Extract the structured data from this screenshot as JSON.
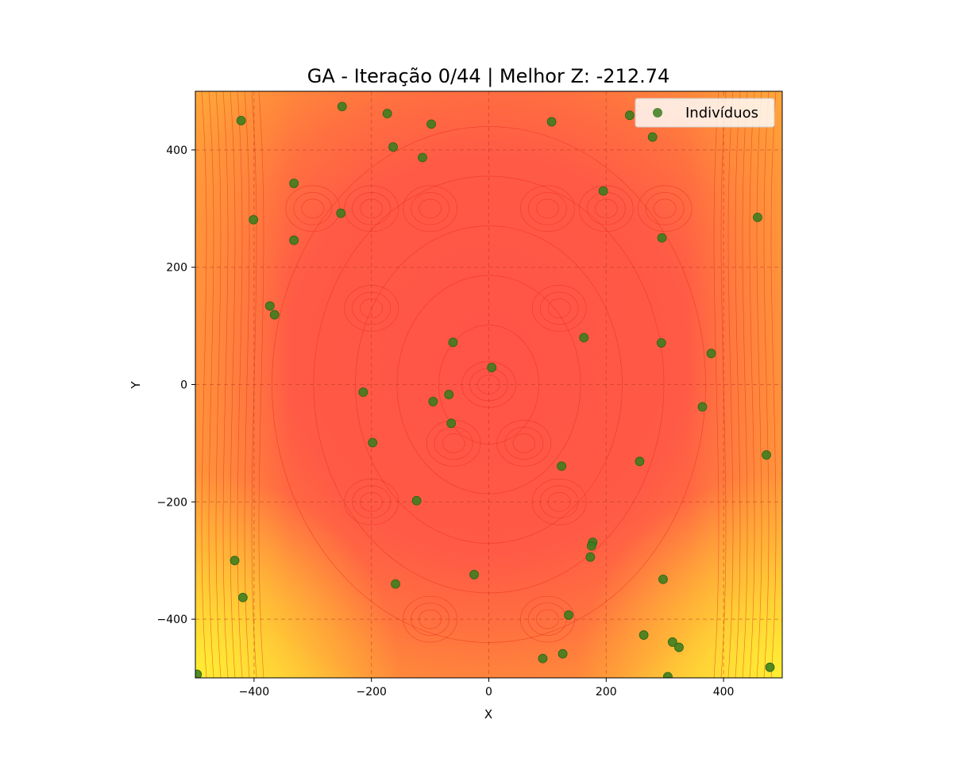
{
  "chart_data": {
    "type": "scatter",
    "title": "GA - Iteração 0/44 | Melhor Z: -212.74",
    "xlabel": "X",
    "ylabel": "Y",
    "xlim": [
      -500,
      500
    ],
    "ylim": [
      -500,
      500
    ],
    "x_ticks": [
      -400,
      -200,
      0,
      200,
      400
    ],
    "y_ticks": [
      -400,
      -200,
      0,
      200,
      400
    ],
    "x_tick_labels": [
      "−400",
      "−200",
      "0",
      "200",
      "400"
    ],
    "y_tick_labels": [
      "−400",
      "−200",
      "0",
      "200",
      "400"
    ],
    "grid": true,
    "legend_position": "top-right",
    "background": "filled contour map (red center to yellow corners)",
    "colors": {
      "points": "#3a7d1e",
      "contour_low": "#ff5448",
      "contour_mid": "#ff8a3a",
      "contour_high": "#ffee33",
      "contour_line": "#e8281a"
    },
    "series": [
      {
        "name": "Indivíduos",
        "points": [
          [
            -422,
            450
          ],
          [
            -250,
            474
          ],
          [
            -173,
            462
          ],
          [
            -98,
            444
          ],
          [
            107,
            448
          ],
          [
            240,
            459
          ],
          [
            -163,
            405
          ],
          [
            -113,
            387
          ],
          [
            279,
            422
          ],
          [
            -332,
            343
          ],
          [
            195,
            330
          ],
          [
            -252,
            292
          ],
          [
            -401,
            281
          ],
          [
            458,
            285
          ],
          [
            -332,
            246
          ],
          [
            295,
            250
          ],
          [
            -373,
            134
          ],
          [
            -365,
            119
          ],
          [
            -61,
            72
          ],
          [
            162,
            80
          ],
          [
            294,
            71
          ],
          [
            379,
            53
          ],
          [
            5,
            29
          ],
          [
            -214,
            -13
          ],
          [
            -68,
            -17
          ],
          [
            -95,
            -29
          ],
          [
            364,
            -38
          ],
          [
            -64,
            -66
          ],
          [
            -198,
            -99
          ],
          [
            473,
            -120
          ],
          [
            257,
            -131
          ],
          [
            124,
            -139
          ],
          [
            -123,
            -198
          ],
          [
            177,
            -269
          ],
          [
            175,
            -275
          ],
          [
            173,
            -294
          ],
          [
            -433,
            -300
          ],
          [
            -25,
            -324
          ],
          [
            297,
            -332
          ],
          [
            -159,
            -340
          ],
          [
            -419,
            -363
          ],
          [
            136,
            -393
          ],
          [
            264,
            -427
          ],
          [
            313,
            -439
          ],
          [
            324,
            -448
          ],
          [
            126,
            -459
          ],
          [
            92,
            -467
          ],
          [
            479,
            -482
          ],
          [
            -497,
            -494
          ],
          [
            305,
            -498
          ]
        ]
      }
    ]
  }
}
